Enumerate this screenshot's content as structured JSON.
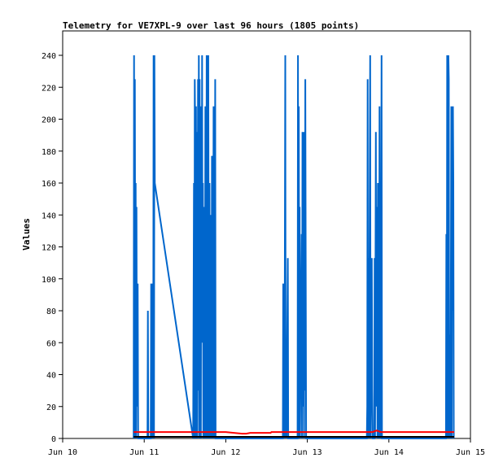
{
  "chart_data": {
    "type": "line",
    "title": "Telemetry for VE7XPL-9 over last 96 hours (1805 points)",
    "ylabel": "Values",
    "xlabel": "",
    "ylim": [
      0,
      250
    ],
    "xlim": [
      0,
      5
    ],
    "y_ticks": [
      0,
      20,
      40,
      60,
      80,
      100,
      120,
      140,
      160,
      180,
      200,
      220,
      240
    ],
    "x_ticks": [
      {
        "x": 0,
        "label": "Jun 10"
      },
      {
        "x": 1,
        "label": "Jun 11"
      },
      {
        "x": 2,
        "label": "Jun 12"
      },
      {
        "x": 3,
        "label": "Jun 13"
      },
      {
        "x": 4,
        "label": "Jun 14"
      },
      {
        "x": 5,
        "label": "Jun 15"
      }
    ],
    "grid": false,
    "legend": "none",
    "colors": {
      "blue": "#0066cc",
      "red": "#ff0000",
      "black": "#000000"
    },
    "series": [
      {
        "color": "#0066cc",
        "points": [
          [
            0.87,
            0
          ],
          [
            0.875,
            240
          ],
          [
            0.88,
            0
          ],
          [
            0.885,
            225
          ],
          [
            0.89,
            60
          ],
          [
            0.895,
            160
          ],
          [
            0.9,
            0
          ],
          [
            0.905,
            145
          ],
          [
            0.91,
            20
          ],
          [
            0.92,
            97
          ],
          [
            0.925,
            0
          ],
          [
            0.94,
            0
          ],
          [
            1.04,
            0
          ],
          [
            1.045,
            80
          ],
          [
            1.05,
            0
          ],
          [
            1.08,
            0
          ],
          [
            1.085,
            97
          ],
          [
            1.09,
            0
          ],
          [
            1.1,
            97
          ],
          [
            1.105,
            80
          ],
          [
            1.11,
            0
          ],
          [
            1.115,
            240
          ],
          [
            1.12,
            0
          ],
          [
            1.125,
            240
          ],
          [
            1.13,
            160
          ],
          [
            1.6,
            0
          ],
          [
            1.61,
            160
          ],
          [
            1.615,
            0
          ],
          [
            1.62,
            225
          ],
          [
            1.625,
            190
          ],
          [
            1.63,
            0
          ],
          [
            1.635,
            208
          ],
          [
            1.64,
            50
          ],
          [
            1.645,
            192
          ],
          [
            1.65,
            0
          ],
          [
            1.66,
            225
          ],
          [
            1.665,
            30
          ],
          [
            1.67,
            240
          ],
          [
            1.675,
            0
          ],
          [
            1.68,
            225
          ],
          [
            1.685,
            80
          ],
          [
            1.69,
            200
          ],
          [
            1.695,
            0
          ],
          [
            1.7,
            208
          ],
          [
            1.705,
            60
          ],
          [
            1.71,
            240
          ],
          [
            1.715,
            65
          ],
          [
            1.72,
            160
          ],
          [
            1.725,
            0
          ],
          [
            1.73,
            145
          ],
          [
            1.735,
            20
          ],
          [
            1.74,
            145
          ],
          [
            1.745,
            0
          ],
          [
            1.75,
            208
          ],
          [
            1.755,
            110
          ],
          [
            1.76,
            0
          ],
          [
            1.765,
            240
          ],
          [
            1.77,
            80
          ],
          [
            1.775,
            225
          ],
          [
            1.78,
            0
          ],
          [
            1.785,
            240
          ],
          [
            1.79,
            97
          ],
          [
            1.795,
            0
          ],
          [
            1.8,
            160
          ],
          [
            1.805,
            30
          ],
          [
            1.81,
            80
          ],
          [
            1.815,
            0
          ],
          [
            1.82,
            140
          ],
          [
            1.825,
            30
          ],
          [
            1.83,
            177
          ],
          [
            1.835,
            0
          ],
          [
            1.84,
            145
          ],
          [
            1.845,
            60
          ],
          [
            1.85,
            208
          ],
          [
            1.855,
            0
          ],
          [
            1.86,
            192
          ],
          [
            1.865,
            100
          ],
          [
            1.87,
            225
          ],
          [
            1.875,
            0
          ],
          [
            2.7,
            0
          ],
          [
            2.705,
            97
          ],
          [
            2.71,
            20
          ],
          [
            2.715,
            85
          ],
          [
            2.72,
            0
          ],
          [
            2.73,
            240
          ],
          [
            2.735,
            0
          ],
          [
            2.74,
            60
          ],
          [
            2.745,
            0
          ],
          [
            2.76,
            113
          ],
          [
            2.765,
            0
          ],
          [
            2.88,
            0
          ],
          [
            2.885,
            240
          ],
          [
            2.89,
            0
          ],
          [
            2.895,
            208
          ],
          [
            2.9,
            60
          ],
          [
            2.905,
            145
          ],
          [
            2.91,
            0
          ],
          [
            2.93,
            128
          ],
          [
            2.935,
            0
          ],
          [
            2.94,
            192
          ],
          [
            2.945,
            20
          ],
          [
            2.95,
            192
          ],
          [
            2.96,
            0
          ],
          [
            2.965,
            192
          ],
          [
            2.97,
            30
          ],
          [
            2.975,
            225
          ],
          [
            2.98,
            113
          ],
          [
            2.985,
            0
          ],
          [
            3.73,
            0
          ],
          [
            3.735,
            20
          ],
          [
            3.74,
            225
          ],
          [
            3.745,
            0
          ],
          [
            3.75,
            113
          ],
          [
            3.755,
            0
          ],
          [
            3.77,
            240
          ],
          [
            3.775,
            0
          ],
          [
            3.79,
            113
          ],
          [
            3.795,
            30
          ],
          [
            3.8,
            0
          ],
          [
            3.82,
            0
          ],
          [
            3.825,
            113
          ],
          [
            3.83,
            0
          ],
          [
            3.84,
            192
          ],
          [
            3.845,
            20
          ],
          [
            3.85,
            113
          ],
          [
            3.855,
            145
          ],
          [
            3.86,
            0
          ],
          [
            3.865,
            160
          ],
          [
            3.87,
            100
          ],
          [
            3.875,
            160
          ],
          [
            3.88,
            0
          ],
          [
            3.885,
            208
          ],
          [
            3.89,
            60
          ],
          [
            3.895,
            140
          ],
          [
            3.9,
            0
          ],
          [
            3.91,
            240
          ],
          [
            3.915,
            0
          ],
          [
            4.7,
            0
          ],
          [
            4.705,
            128
          ],
          [
            4.71,
            0
          ],
          [
            4.715,
            240
          ],
          [
            4.72,
            192
          ],
          [
            4.725,
            0
          ],
          [
            4.73,
            240
          ],
          [
            4.735,
            225
          ],
          [
            4.74,
            0
          ],
          [
            4.75,
            65
          ],
          [
            4.755,
            0
          ],
          [
            4.765,
            208
          ],
          [
            4.77,
            0
          ],
          [
            4.775,
            208
          ],
          [
            4.78,
            80
          ],
          [
            4.785,
            208
          ],
          [
            4.79,
            160
          ],
          [
            4.795,
            0
          ]
        ]
      },
      {
        "color": "#ff0000",
        "points": [
          [
            0.87,
            4
          ],
          [
            1.6,
            4
          ],
          [
            2.0,
            4
          ],
          [
            2.2,
            3
          ],
          [
            2.25,
            3
          ],
          [
            2.3,
            3.5
          ],
          [
            2.55,
            3.5
          ],
          [
            2.56,
            4
          ],
          [
            3.8,
            4
          ],
          [
            3.85,
            5
          ],
          [
            3.9,
            4
          ],
          [
            4.8,
            4
          ]
        ]
      },
      {
        "color": "#000000",
        "points": [
          [
            0.87,
            1
          ],
          [
            4.8,
            1
          ]
        ]
      }
    ]
  }
}
